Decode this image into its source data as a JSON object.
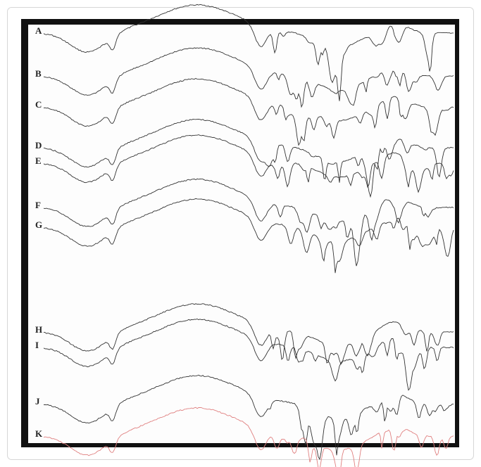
{
  "figure": {
    "labels": [
      "A",
      "B",
      "C",
      "D",
      "E",
      "F",
      "G",
      "H",
      "I",
      "J",
      "K"
    ]
  }
}
